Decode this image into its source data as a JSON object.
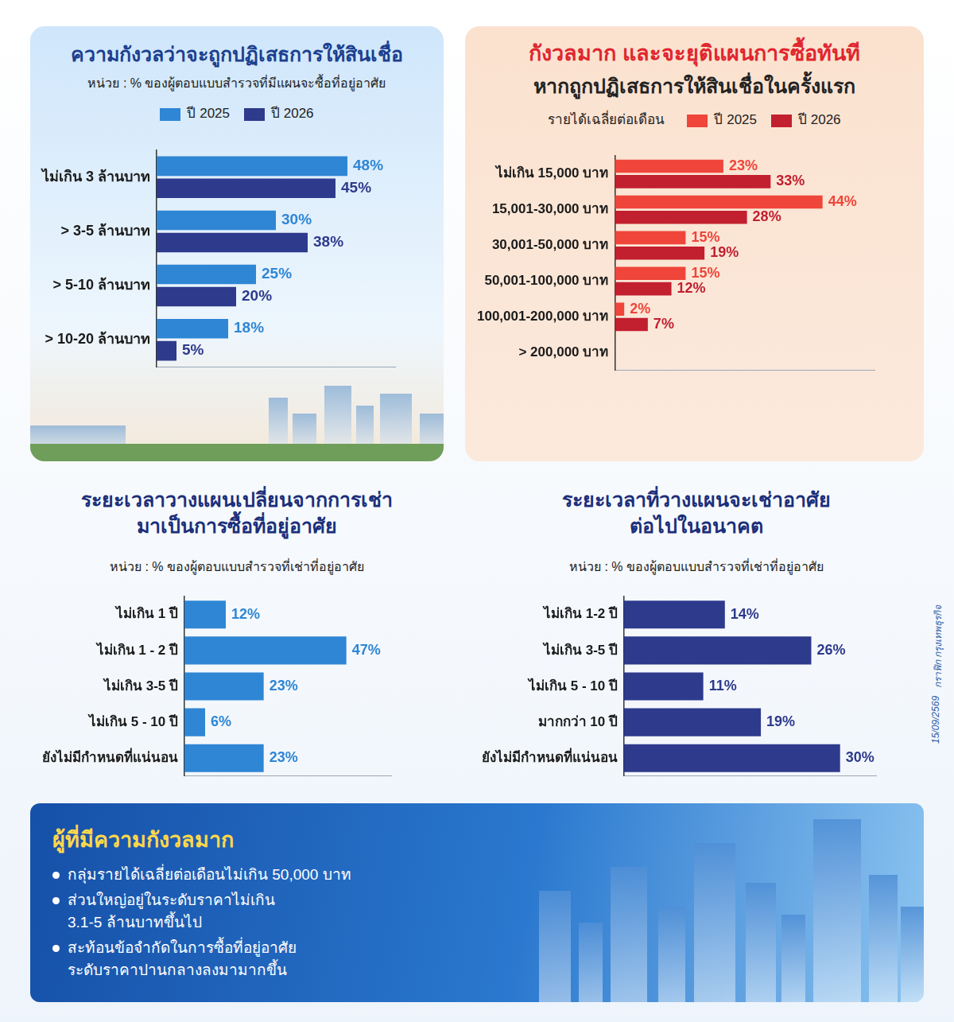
{
  "chart_data": [
    {
      "type": "bar",
      "orientation": "horizontal",
      "title": "ความกังวลว่าจะถูกปฏิเสธการให้สินเชื่อ",
      "subtitle": "หน่วย : % ของผู้ตอบแบบสำรวจที่มีแผนจะซื้อที่อยู่อาศัย",
      "categories": [
        "ไม่เกิน 3 ล้านบาท",
        "> 3-5 ล้านบาท",
        "> 5-10 ล้านบาท",
        "> 10-20 ล้านบาท"
      ],
      "series": [
        {
          "name": "ปี 2025",
          "color": "#2f86d4",
          "values": [
            48,
            30,
            25,
            18
          ],
          "value_labels": [
            "48%",
            "30%",
            "25%",
            "18%"
          ]
        },
        {
          "name": "ปี 2026",
          "color": "#2e3a8c",
          "values": [
            45,
            38,
            20,
            5
          ],
          "value_labels": [
            "45%",
            "38%",
            "20%",
            "5%"
          ]
        }
      ],
      "xlim": [
        0,
        60
      ],
      "grid": false,
      "legend": "top",
      "data_labels": true,
      "tick_labels": "y"
    },
    {
      "type": "bar",
      "orientation": "horizontal",
      "title": "กังวลมาก และจะยุติแผนการซื้อทันที",
      "subtitle": "หากถูกปฏิเสธการให้สินเชื่อในครั้งแรก",
      "y_label": "รายได้เฉลี่ยต่อเดือน",
      "categories": [
        "ไม่เกิน 15,000 บาท",
        "15,001-30,000 บาท",
        "30,001-50,000 บาท",
        "50,001-100,000 บาท",
        "100,001-200,000 บาท",
        "> 200,000 บาท"
      ],
      "series": [
        {
          "name": "ปี 2025",
          "color": "#f0453a",
          "values": [
            23,
            44,
            15,
            15,
            2,
            null
          ],
          "value_labels": [
            "23%",
            "44%",
            "15%",
            "15%",
            "2%",
            null
          ]
        },
        {
          "name": "ปี 2026",
          "color": "#c21f2f",
          "values": [
            33,
            28,
            19,
            12,
            7,
            null
          ],
          "value_labels": [
            "33%",
            "28%",
            "19%",
            "12%",
            "7%",
            null
          ]
        }
      ],
      "xlim": [
        0,
        55
      ],
      "grid": false,
      "legend": "top",
      "data_labels": true,
      "tick_labels": "y"
    },
    {
      "type": "bar",
      "orientation": "horizontal",
      "title": [
        "ระยะเวลาวางแผนเปลี่ยนจากการเช่า",
        "มาเป็นการซื้อที่อยู่อาศัย"
      ],
      "subtitle": "หน่วย : % ของผู้ตอบแบบสำรวจที่เช่าที่อยู่อาศัย",
      "categories": [
        "ไม่เกิน 1 ปี",
        "ไม่เกิน 1 - 2 ปี",
        "ไม่เกิน 3-5 ปี",
        "ไม่เกิน 5 - 10 ปี",
        "ยังไม่มีกำหนดที่แน่นอน"
      ],
      "values": [
        12,
        47,
        23,
        6,
        23
      ],
      "value_labels": [
        "12%",
        "47%",
        "23%",
        "6%",
        "23%"
      ],
      "color": "#2f86d4",
      "xlim": [
        0,
        60
      ],
      "grid": false,
      "data_labels": true,
      "tick_labels": "y"
    },
    {
      "type": "bar",
      "orientation": "horizontal",
      "title": [
        "ระยะเวลาที่วางแผนจะเช่าอาศัย",
        "ต่อไปในอนาคต"
      ],
      "subtitle": "หน่วย : % ของผู้ตอบแบบสำรวจที่เช่าที่อยู่อาศัย",
      "categories": [
        "ไม่เกิน 1-2 ปี",
        "ไม่เกิน 3-5 ปี",
        "ไม่เกิน 5 - 10 ปี",
        "มากกว่า 10 ปี",
        "ยังไม่มีกำหนดที่แน่นอน"
      ],
      "values": [
        14,
        26,
        11,
        19,
        30
      ],
      "value_labels": [
        "14%",
        "26%",
        "11%",
        "19%",
        "30%"
      ],
      "color": "#2e3a8c",
      "xlim": [
        0,
        35
      ],
      "grid": false,
      "data_labels": true,
      "tick_labels": "y"
    }
  ],
  "summary": {
    "title": "ผู้ที่มีความกังวลมาก",
    "bullets": [
      [
        "กลุ่มรายได้เฉลี่ยต่อเดือนไม่เกิน 50,000 บาท"
      ],
      [
        "ส่วนใหญ่อยู่ในระดับราคาไม่เกิน",
        "3.1-5 ล้านบาทขึ้นไป"
      ],
      [
        "สะท้อนข้อจำกัดในการซื้อที่อยู่อาศัย",
        "ระดับราคาปานกลางลงมามากขึ้น"
      ]
    ]
  },
  "date": "15/09/2569",
  "credit": "กราฟิก กรุงเทพธุรกิจ"
}
